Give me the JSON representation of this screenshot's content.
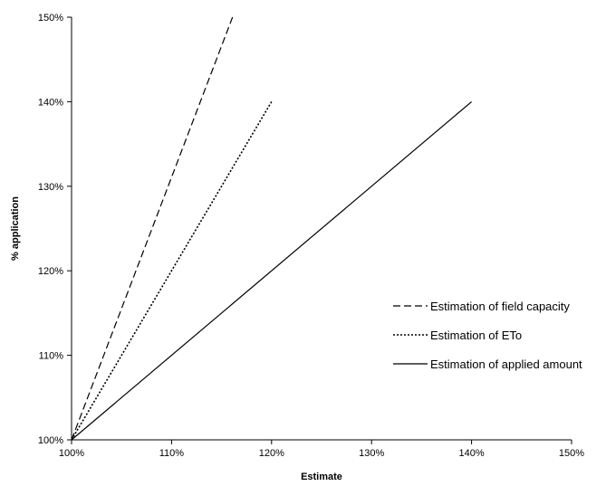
{
  "chart_data": {
    "type": "line",
    "title": "",
    "xlabel": "Estimate",
    "ylabel": "% application",
    "xlim": [
      100,
      150
    ],
    "ylim": [
      100,
      150
    ],
    "x_ticks": [
      "100%",
      "110%",
      "120%",
      "130%",
      "140%",
      "150%"
    ],
    "y_ticks": [
      "100%",
      "110%",
      "120%",
      "130%",
      "140%",
      "150%"
    ],
    "grid": false,
    "legend_position": "right",
    "series": [
      {
        "name": "Estimation of field capacity",
        "style": "dashed",
        "color": "#000000",
        "x": [
          100,
          116.1
        ],
        "y": [
          100,
          150
        ]
      },
      {
        "name": "Estimation of ETo",
        "style": "dotted",
        "color": "#000000",
        "x": [
          100,
          120
        ],
        "y": [
          100,
          140
        ]
      },
      {
        "name": "Estimation of applied amount",
        "style": "solid",
        "color": "#000000",
        "x": [
          100,
          140
        ],
        "y": [
          100,
          140
        ]
      }
    ]
  }
}
